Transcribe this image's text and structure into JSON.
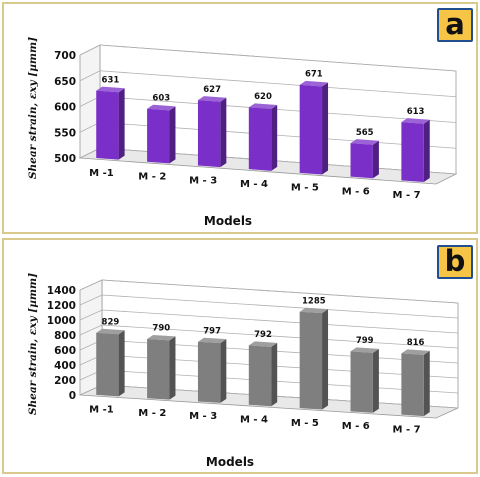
{
  "chart_data": [
    {
      "panel_label": "a",
      "type": "bar",
      "categories": [
        "M -1",
        "M - 2",
        "M - 3",
        "M - 4",
        "M - 5",
        "M - 6",
        "M - 7"
      ],
      "values": [
        631,
        603,
        627,
        620,
        671,
        565,
        613
      ],
      "data_labels": [
        "631",
        "603",
        "627",
        "620",
        "671",
        "565",
        "613"
      ],
      "xlabel": "Models",
      "ylabel": "Shear strain, εxy [µmm]",
      "ylim": [
        500,
        700
      ],
      "yticks": [
        500,
        550,
        600,
        650,
        700
      ],
      "grid": true,
      "bar_color": "#7a2fc8",
      "style": "3d-column"
    },
    {
      "panel_label": "b",
      "type": "bar",
      "categories": [
        "M -1",
        "M - 2",
        "M - 3",
        "M - 4",
        "M - 5",
        "M - 6",
        "M - 7"
      ],
      "values": [
        829,
        790,
        797,
        792,
        1285,
        799,
        816
      ],
      "data_labels": [
        "829",
        "790",
        "797",
        "792",
        "1285",
        "799",
        "816"
      ],
      "xlabel": "Models",
      "ylabel": "Shear strain, εxy [µmm]",
      "ylim": [
        0,
        1400
      ],
      "yticks": [
        0,
        200,
        400,
        600,
        800,
        1000,
        1200,
        1400
      ],
      "grid": true,
      "bar_color": "#7f7f7f",
      "style": "3d-column"
    }
  ]
}
